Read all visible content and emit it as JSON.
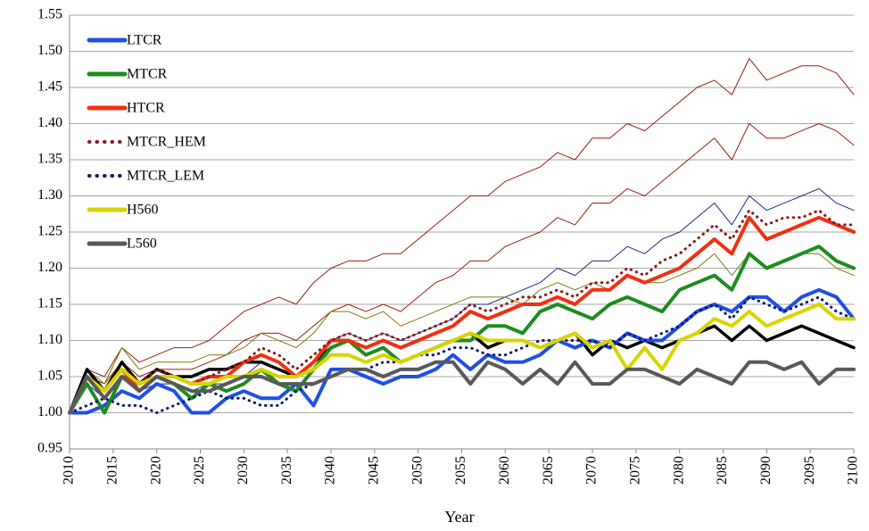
{
  "chart_data": {
    "type": "line",
    "x_label": "Year",
    "legend": "upper-left",
    "grid": true,
    "xlim": [
      2010,
      2100
    ],
    "ylim": [
      0.95,
      1.55
    ],
    "xticks": [
      2010,
      2015,
      2020,
      2025,
      2030,
      2035,
      2040,
      2045,
      2050,
      2055,
      2060,
      2065,
      2070,
      2075,
      2080,
      2085,
      2090,
      2095,
      2100
    ],
    "yticks": [
      0.95,
      {
        "value": 1.0,
        "label": "1.00"
      },
      1.05,
      {
        "value": 1.1,
        "label": "1.10"
      },
      1.15,
      {
        "value": 1.2,
        "label": "1.20"
      },
      1.25,
      {
        "value": 1.3,
        "label": "1.30"
      },
      1.35,
      {
        "value": 1.4,
        "label": "1.40"
      },
      1.45,
      {
        "value": 1.5,
        "label": "1.50"
      },
      1.55
    ],
    "x": [
      2010,
      2012,
      2014,
      2016,
      2018,
      2020,
      2022,
      2024,
      2026,
      2028,
      2030,
      2032,
      2034,
      2036,
      2038,
      2040,
      2042,
      2044,
      2046,
      2048,
      2050,
      2052,
      2054,
      2056,
      2058,
      2060,
      2062,
      2064,
      2066,
      2068,
      2070,
      2072,
      2074,
      2076,
      2078,
      2080,
      2082,
      2084,
      2086,
      2088,
      2090,
      2092,
      2094,
      2096,
      2098,
      2100
    ],
    "series": [
      {
        "color": "#9b1c0c",
        "style": "thin",
        "values": [
          1.0,
          1.06,
          1.05,
          1.09,
          1.07,
          1.08,
          1.09,
          1.09,
          1.1,
          1.12,
          1.14,
          1.15,
          1.16,
          1.15,
          1.18,
          1.2,
          1.21,
          1.21,
          1.22,
          1.22,
          1.24,
          1.26,
          1.28,
          1.3,
          1.3,
          1.32,
          1.33,
          1.34,
          1.36,
          1.35,
          1.38,
          1.38,
          1.4,
          1.39,
          1.41,
          1.43,
          1.45,
          1.46,
          1.44,
          1.49,
          1.46,
          1.47,
          1.48,
          1.48,
          1.47,
          1.44
        ]
      },
      {
        "color": "#9b1c0c",
        "style": "thin",
        "values": [
          1.0,
          1.05,
          1.04,
          1.07,
          1.05,
          1.06,
          1.06,
          1.06,
          1.07,
          1.08,
          1.1,
          1.11,
          1.11,
          1.1,
          1.12,
          1.14,
          1.15,
          1.14,
          1.15,
          1.14,
          1.16,
          1.18,
          1.19,
          1.21,
          1.21,
          1.23,
          1.24,
          1.25,
          1.27,
          1.26,
          1.29,
          1.29,
          1.31,
          1.3,
          1.32,
          1.34,
          1.36,
          1.38,
          1.35,
          1.4,
          1.38,
          1.38,
          1.39,
          1.4,
          1.39,
          1.37
        ]
      },
      {
        "color": "#1a2a80",
        "style": "thin",
        "values": [
          1.0,
          1.04,
          1.02,
          1.05,
          1.03,
          1.04,
          1.04,
          1.03,
          1.04,
          1.04,
          1.05,
          1.07,
          1.06,
          1.05,
          1.07,
          1.1,
          1.11,
          1.1,
          1.11,
          1.1,
          1.11,
          1.12,
          1.13,
          1.15,
          1.15,
          1.16,
          1.17,
          1.18,
          1.2,
          1.19,
          1.21,
          1.21,
          1.23,
          1.22,
          1.24,
          1.25,
          1.27,
          1.29,
          1.26,
          1.3,
          1.28,
          1.29,
          1.3,
          1.31,
          1.29,
          1.28
        ]
      },
      {
        "color": "#7a7a10",
        "style": "thin",
        "values": [
          1.0,
          1.06,
          1.04,
          1.09,
          1.06,
          1.07,
          1.07,
          1.07,
          1.08,
          1.08,
          1.09,
          1.11,
          1.1,
          1.09,
          1.11,
          1.14,
          1.14,
          1.13,
          1.14,
          1.12,
          1.13,
          1.14,
          1.15,
          1.16,
          1.16,
          1.16,
          1.15,
          1.17,
          1.18,
          1.17,
          1.18,
          1.17,
          1.19,
          1.18,
          1.18,
          1.19,
          1.2,
          1.22,
          1.19,
          1.22,
          1.2,
          1.21,
          1.22,
          1.22,
          1.2,
          1.19
        ]
      },
      {
        "color": "#000000",
        "style": "band",
        "values": [
          1.0,
          1.06,
          1.03,
          1.07,
          1.04,
          1.06,
          1.05,
          1.05,
          1.06,
          1.06,
          1.07,
          1.07,
          1.06,
          1.05,
          1.07,
          1.09,
          1.1,
          1.08,
          1.09,
          1.07,
          1.08,
          1.09,
          1.1,
          1.11,
          1.09,
          1.1,
          1.1,
          1.09,
          1.1,
          1.11,
          1.08,
          1.1,
          1.09,
          1.1,
          1.09,
          1.1,
          1.11,
          1.12,
          1.1,
          1.12,
          1.1,
          1.11,
          1.12,
          1.11,
          1.1,
          1.09
        ]
      },
      {
        "name": "LTCR",
        "color": "#1f4fe8",
        "style": "thick",
        "values": [
          1.0,
          1.0,
          1.01,
          1.03,
          1.02,
          1.04,
          1.03,
          1.0,
          1.0,
          1.02,
          1.03,
          1.02,
          1.02,
          1.04,
          1.01,
          1.06,
          1.06,
          1.05,
          1.04,
          1.05,
          1.05,
          1.06,
          1.08,
          1.06,
          1.08,
          1.07,
          1.07,
          1.08,
          1.1,
          1.09,
          1.1,
          1.09,
          1.11,
          1.1,
          1.1,
          1.12,
          1.14,
          1.15,
          1.14,
          1.16,
          1.16,
          1.14,
          1.16,
          1.17,
          1.16,
          1.13
        ]
      },
      {
        "name": "MTCR",
        "color": "#1e8c1e",
        "style": "thick",
        "values": [
          1.0,
          1.04,
          1.0,
          1.05,
          1.04,
          1.05,
          1.04,
          1.02,
          1.04,
          1.03,
          1.04,
          1.06,
          1.04,
          1.03,
          1.06,
          1.09,
          1.1,
          1.08,
          1.09,
          1.07,
          1.08,
          1.09,
          1.1,
          1.1,
          1.12,
          1.12,
          1.11,
          1.14,
          1.15,
          1.14,
          1.13,
          1.15,
          1.16,
          1.15,
          1.14,
          1.17,
          1.18,
          1.19,
          1.17,
          1.22,
          1.2,
          1.21,
          1.22,
          1.23,
          1.21,
          1.2
        ]
      },
      {
        "name": "HTCR",
        "color": "#f03010",
        "style": "thick",
        "values": [
          1.0,
          1.05,
          1.03,
          1.06,
          1.03,
          1.05,
          1.05,
          1.04,
          1.05,
          1.05,
          1.07,
          1.08,
          1.07,
          1.05,
          1.07,
          1.1,
          1.1,
          1.09,
          1.1,
          1.09,
          1.1,
          1.11,
          1.12,
          1.14,
          1.13,
          1.14,
          1.15,
          1.15,
          1.16,
          1.15,
          1.17,
          1.17,
          1.19,
          1.18,
          1.19,
          1.2,
          1.22,
          1.24,
          1.22,
          1.27,
          1.24,
          1.25,
          1.26,
          1.27,
          1.26,
          1.25
        ]
      },
      {
        "name": "MTCR_HEM",
        "color": "#8b1a1a",
        "style": "dotted",
        "values": [
          1.0,
          1.05,
          1.03,
          1.06,
          1.04,
          1.06,
          1.05,
          1.04,
          1.05,
          1.06,
          1.07,
          1.09,
          1.08,
          1.06,
          1.08,
          1.1,
          1.11,
          1.1,
          1.11,
          1.1,
          1.11,
          1.12,
          1.13,
          1.15,
          1.14,
          1.15,
          1.16,
          1.16,
          1.17,
          1.16,
          1.18,
          1.18,
          1.2,
          1.19,
          1.21,
          1.22,
          1.24,
          1.26,
          1.24,
          1.28,
          1.26,
          1.27,
          1.27,
          1.28,
          1.26,
          1.26
        ]
      },
      {
        "name": "MTCR_LEM",
        "color": "#0a1a70",
        "style": "dotted",
        "values": [
          1.0,
          1.01,
          1.02,
          1.01,
          1.01,
          1.0,
          1.01,
          1.02,
          1.03,
          1.02,
          1.02,
          1.01,
          1.01,
          1.03,
          1.04,
          1.05,
          1.06,
          1.06,
          1.07,
          1.07,
          1.08,
          1.08,
          1.09,
          1.09,
          1.08,
          1.08,
          1.09,
          1.1,
          1.1,
          1.1,
          1.1,
          1.09,
          1.11,
          1.1,
          1.11,
          1.12,
          1.14,
          1.15,
          1.13,
          1.16,
          1.15,
          1.14,
          1.15,
          1.16,
          1.14,
          1.13
        ]
      },
      {
        "name": "H560",
        "color": "#d8d400",
        "style": "thick",
        "values": [
          1.0,
          1.05,
          1.03,
          1.06,
          1.04,
          1.05,
          1.05,
          1.04,
          1.04,
          1.05,
          1.05,
          1.06,
          1.05,
          1.05,
          1.06,
          1.08,
          1.08,
          1.07,
          1.08,
          1.07,
          1.08,
          1.09,
          1.1,
          1.11,
          1.1,
          1.1,
          1.1,
          1.09,
          1.1,
          1.11,
          1.09,
          1.1,
          1.06,
          1.09,
          1.06,
          1.1,
          1.11,
          1.13,
          1.12,
          1.14,
          1.12,
          1.13,
          1.14,
          1.15,
          1.13,
          1.13
        ]
      },
      {
        "name": "L560",
        "color": "#595959",
        "style": "thick",
        "values": [
          1.0,
          1.05,
          1.02,
          1.05,
          1.03,
          1.05,
          1.04,
          1.03,
          1.03,
          1.04,
          1.05,
          1.05,
          1.04,
          1.04,
          1.04,
          1.05,
          1.06,
          1.06,
          1.05,
          1.06,
          1.06,
          1.07,
          1.07,
          1.04,
          1.07,
          1.06,
          1.04,
          1.06,
          1.04,
          1.07,
          1.04,
          1.04,
          1.06,
          1.06,
          1.05,
          1.04,
          1.06,
          1.05,
          1.04,
          1.07,
          1.07,
          1.06,
          1.07,
          1.04,
          1.06,
          1.06
        ]
      }
    ]
  }
}
